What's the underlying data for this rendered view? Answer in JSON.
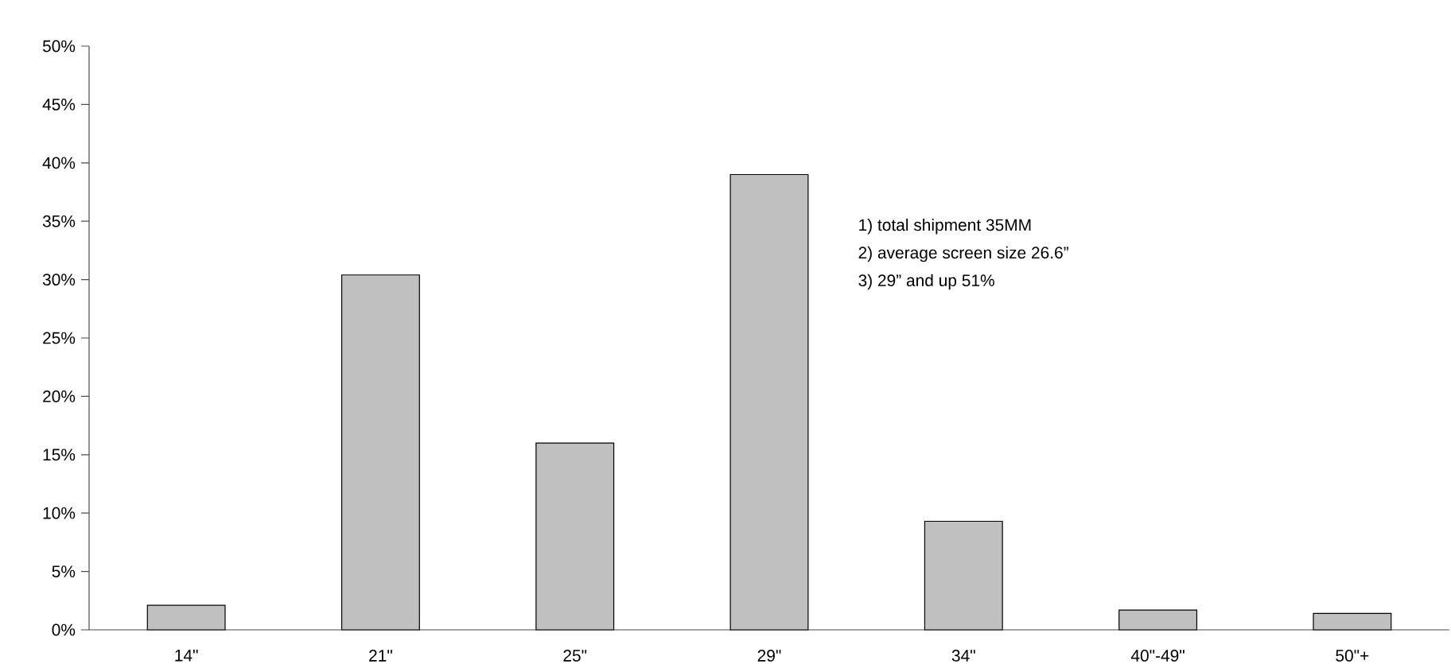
{
  "chart_data": {
    "type": "bar",
    "categories": [
      "14\"",
      "21\"",
      "25\"",
      "29\"",
      "34\"",
      "40\"-49\"",
      "50\"+"
    ],
    "values": [
      2.1,
      30.4,
      16.0,
      39.0,
      9.3,
      1.7,
      1.4
    ],
    "color": "#c0c0c0",
    "ylim": [
      0,
      50
    ],
    "yticks": [
      {
        "value": 0,
        "label": "0%"
      },
      {
        "value": 5,
        "label": "5%"
      },
      {
        "value": 10,
        "label": "10%"
      },
      {
        "value": 15,
        "label": "15%"
      },
      {
        "value": 20,
        "label": "20%"
      },
      {
        "value": 25,
        "label": "25%"
      },
      {
        "value": 30,
        "label": "30%"
      },
      {
        "value": 35,
        "label": "35%"
      },
      {
        "value": 40,
        "label": "40%"
      },
      {
        "value": 45,
        "label": "45%"
      },
      {
        "value": 50,
        "label": "50%"
      }
    ],
    "annotations": [
      "1) total shipment 35MM",
      "2) average screen size 26.6”",
      "3) 29” and up 51%"
    ]
  }
}
